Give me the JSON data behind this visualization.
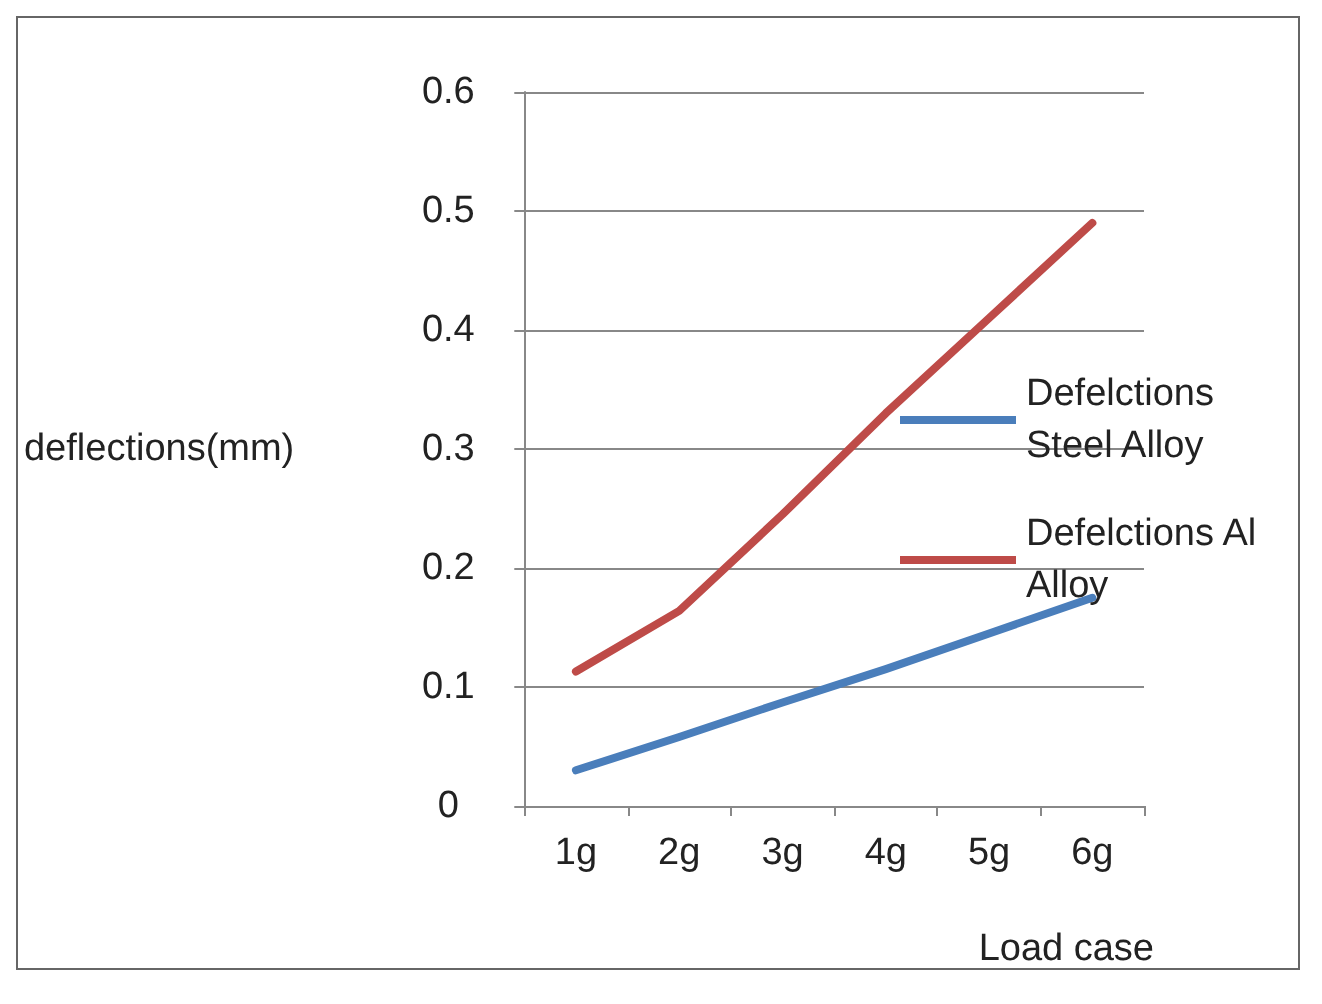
{
  "chart_data": {
    "type": "line",
    "xlabel": "Load case",
    "ylabel": "deflections(mm)",
    "categories": [
      "1g",
      "2g",
      "3g",
      "4g",
      "5g",
      "6g"
    ],
    "series": [
      {
        "name": "Defelctions Steel Alloy",
        "color": "#4a7ebb",
        "values": [
          0.03,
          0.058,
          0.087,
          0.115,
          0.145,
          0.175
        ]
      },
      {
        "name": "Defelctions Al Alloy",
        "color": "#be4b48",
        "values": [
          0.113,
          0.164,
          0.245,
          0.33,
          0.41,
          0.49
        ]
      }
    ],
    "ylim": [
      0,
      0.6
    ],
    "yticks": [
      0,
      0.1,
      0.2,
      0.3,
      0.4,
      0.5,
      0.6
    ],
    "grid": "y",
    "legend": "right",
    "marker": "none",
    "line_style": "solid"
  }
}
